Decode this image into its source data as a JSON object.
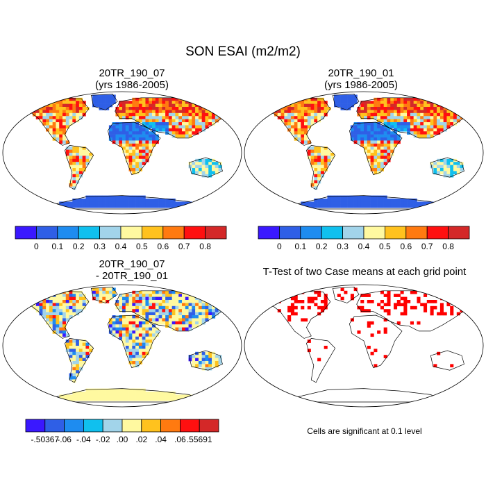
{
  "title": "SON ESAI (m2/m2)",
  "panels": [
    {
      "title_line1": "20TR_190_07",
      "title_line2": "(yrs 1986-2005)"
    },
    {
      "title_line1": "20TR_190_01",
      "title_line2": "(yrs 1986-2005)"
    },
    {
      "title_line1": "20TR_190_07",
      "title_line2": "- 20TR_190_01"
    },
    {
      "title_line1": "T-Test of two Case means at each grid point",
      "title_line2": ""
    }
  ],
  "note": "Cells are significant at 0.1 level",
  "chart_data": [
    {
      "type": "heatmap",
      "title": "20TR_190_07 (yrs 1986-2005)",
      "colorbar": {
        "colors": [
          "#3a18ff",
          "#2f5fe6",
          "#1e8cf0",
          "#10c0ee",
          "#a2d4ea",
          "#fff9a0",
          "#ffc21e",
          "#ff7a10",
          "#ff1010",
          "#d42828"
        ],
        "labels": [
          "0",
          "0.1",
          "0.2",
          "0.3",
          "0.4",
          "0.5",
          "0.6",
          "0.7",
          "0.8"
        ]
      }
    },
    {
      "type": "heatmap",
      "title": "20TR_190_01 (yrs 1986-2005)",
      "colorbar": {
        "colors": [
          "#3a18ff",
          "#2f5fe6",
          "#1e8cf0",
          "#10c0ee",
          "#a2d4ea",
          "#fff9a0",
          "#ffc21e",
          "#ff7a10",
          "#ff1010",
          "#d42828"
        ],
        "labels": [
          "0",
          "0.1",
          "0.2",
          "0.3",
          "0.4",
          "0.5",
          "0.6",
          "0.7",
          "0.8"
        ]
      }
    },
    {
      "type": "heatmap",
      "title": "20TR_190_07 - 20TR_190_01",
      "colorbar": {
        "colors": [
          "#3a18ff",
          "#2f5fe6",
          "#1e8cf0",
          "#10c0ee",
          "#a2d4ea",
          "#fff9a0",
          "#ffc21e",
          "#ff7a10",
          "#ff1010",
          "#d42828"
        ],
        "labels": [
          "-.50367",
          "-.06",
          "-.04",
          "-.02",
          ".00",
          ".02",
          ".04",
          ".06",
          ".55691"
        ]
      }
    },
    {
      "type": "heatmap",
      "title": "T-Test of two Case means at each grid point",
      "significant_color": "#ff0000"
    }
  ]
}
